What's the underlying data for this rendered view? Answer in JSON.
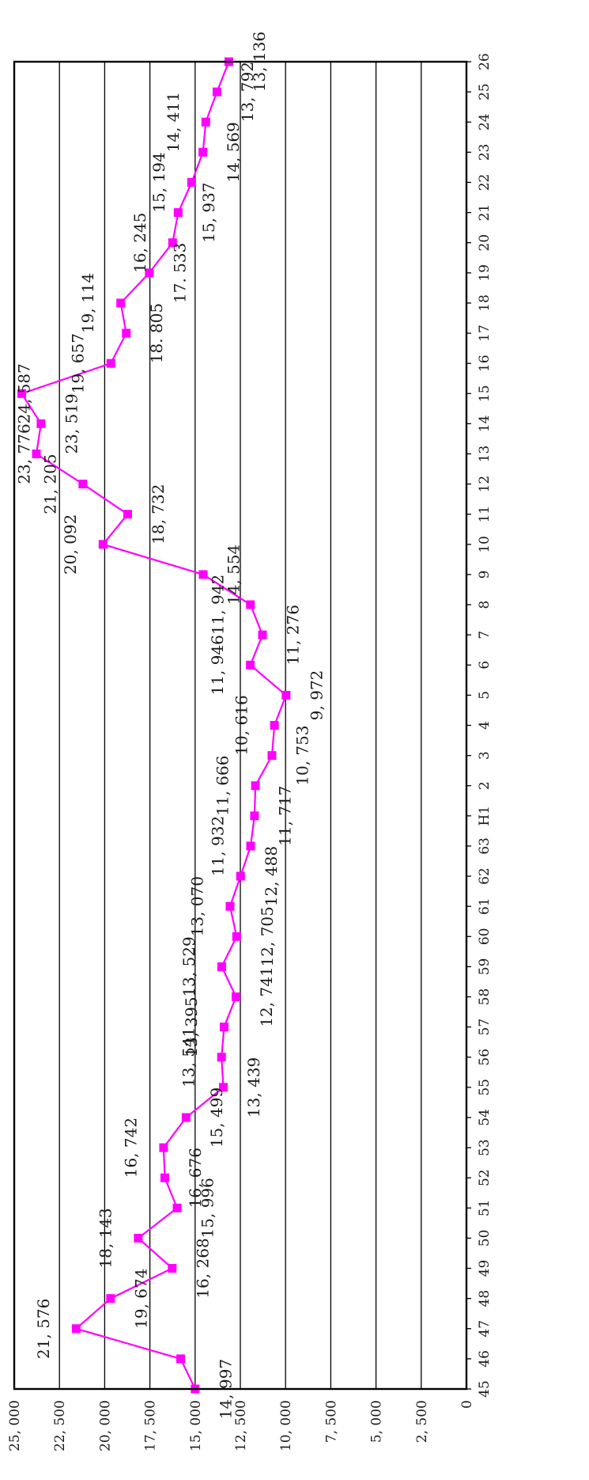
{
  "chart_data": {
    "type": "line",
    "x_categories": [
      "45",
      "46",
      "47",
      "48",
      "49",
      "50",
      "51",
      "52",
      "53",
      "54",
      "55",
      "56",
      "57",
      "58",
      "59",
      "60",
      "61",
      "62",
      "63",
      "H1",
      "2",
      "3",
      "4",
      "5",
      "6",
      "7",
      "8",
      "9",
      "10",
      "11",
      "12",
      "13",
      "14",
      "15",
      "16",
      "17",
      "18",
      "19",
      "20",
      "21",
      "22",
      "23",
      "24",
      "25",
      "26"
    ],
    "values": [
      14997,
      15800,
      21576,
      19674,
      16268,
      18143,
      15996,
      16676,
      16742,
      15499,
      13439,
      13541,
      13395,
      12741,
      13529,
      12705,
      13070,
      12488,
      11932,
      11717,
      11666,
      10753,
      10616,
      9972,
      11946,
      11276,
      11942,
      14554,
      20092,
      18732,
      21205,
      23776,
      23519,
      24587,
      19657,
      18805,
      19114,
      17533,
      16245,
      15937,
      15194,
      14569,
      14411,
      13792,
      13136
    ],
    "data_labels": [
      "14, 997",
      "",
      "21, 576",
      "19, 674",
      "16, 268",
      "18, 143",
      "15, 996",
      "16, 676",
      "16, 742",
      "15, 499",
      "13, 439",
      "13, 541",
      "13, 395",
      "12, 741",
      "13, 529",
      "12, 705",
      "13, 070",
      "12, 488",
      "11, 932",
      "11, 717",
      "11, 666",
      "10, 753",
      "10, 616",
      "9, 972",
      "11, 946",
      "11, 276",
      "11, 942",
      "14, 554",
      "20, 092",
      "18, 732",
      "21, 205",
      "23, 776",
      "23, 519",
      "24, 587",
      "19, 657",
      "18. 805",
      "19, 114",
      "17. 533",
      "16, 245",
      "15, 937",
      "15, 194",
      "14, 569",
      "14, 411",
      "13, 792",
      "13, 136"
    ],
    "y_ticks": [
      "0",
      "2, 500",
      "5, 000",
      "7, 500",
      "10, 000",
      "12, 500",
      "15, 000",
      "17, 500",
      "20, 000",
      "22, 500",
      "25, 000"
    ],
    "y_range": [
      0,
      25000
    ],
    "y_tick_step": 2500,
    "grid": "horizontal gridlines at every tick",
    "legend": "none",
    "orientation": "rotated 90 degrees (category axis vertical on the right, value axis along the bottom)",
    "colors": {
      "series": "#ff00ff",
      "grid": "#000000",
      "frame": "#000000",
      "text": "#1a1a1a",
      "background": "#ffffff"
    }
  }
}
